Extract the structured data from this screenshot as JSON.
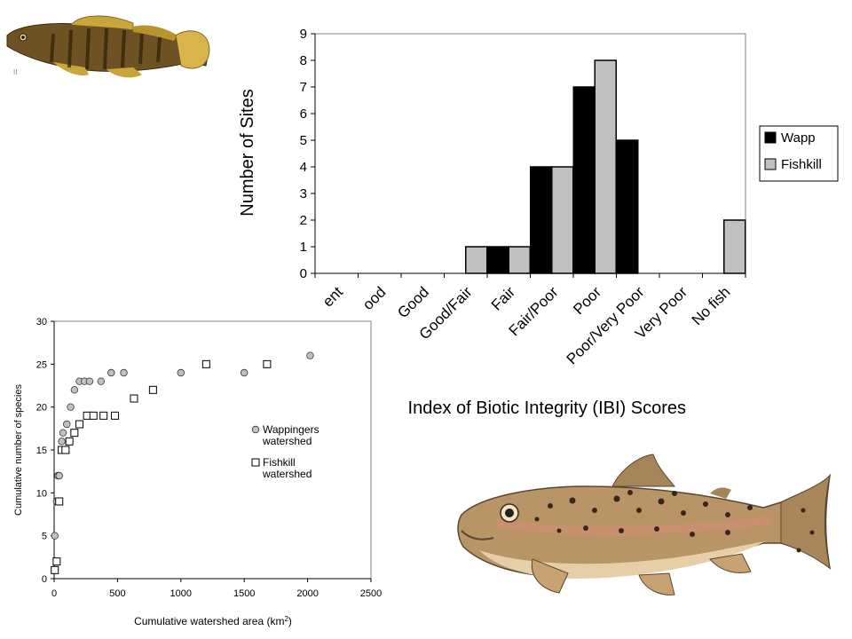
{
  "images": [
    {
      "icon": "darter-fish-illustration",
      "mark": "II"
    },
    {
      "icon": "brown-trout-illustration"
    }
  ],
  "colors": {
    "wapp": "#000000",
    "fishkill": "#c0c0c0",
    "plot_bg": "#ffffff",
    "scatter_marker": "#c0c0c0"
  },
  "chart_data": [
    {
      "type": "bar",
      "ylabel": "Number of Sites",
      "xlabel": "Index of Biotic Integrity (IBI) Scores",
      "ylim": [
        0,
        9
      ],
      "yticks": [
        "0",
        "1",
        "2",
        "3",
        "4",
        "5",
        "6",
        "7",
        "8",
        "9"
      ],
      "categories": [
        "Excellent",
        "Excellent/Good",
        "Good",
        "Good/Fair",
        "Fair",
        "Fair/Poor",
        "Poor",
        "Poor/Very Poor",
        "Very Poor",
        "No fish"
      ],
      "category_labels_visible": [
        "ent",
        "ood",
        "Good",
        "Good/Fair",
        "Fair",
        "Fair/Poor",
        "Poor",
        "Poor/Very Poor",
        "Very Poor",
        "No fish"
      ],
      "series": [
        {
          "name": "Wapp",
          "values": [
            0,
            0,
            0,
            0,
            1,
            4,
            7,
            5,
            0,
            0
          ]
        },
        {
          "name": "Fishkill",
          "values": [
            0,
            0,
            0,
            1,
            1,
            4,
            8,
            0,
            0,
            2
          ]
        }
      ],
      "legend": "right",
      "grid": false
    },
    {
      "type": "scatter",
      "xlabel": "Cumulative watershed area (km",
      "xlabel_sup": "2",
      "xlabel_close": ")",
      "ylabel": "Cumulative number of species",
      "xlim": [
        0,
        2500
      ],
      "ylim": [
        0,
        30
      ],
      "xticks": [
        "0",
        "500",
        "1000",
        "1500",
        "2000",
        "2500"
      ],
      "yticks": [
        "0",
        "5",
        "10",
        "15",
        "20",
        "25",
        "30"
      ],
      "series": [
        {
          "name": "Wappingers watershed",
          "name_lines": [
            "Wappingers",
            "watershed"
          ],
          "marker": "circle",
          "points": [
            [
              5,
              5
            ],
            [
              20,
              9
            ],
            [
              30,
              12
            ],
            [
              40,
              12
            ],
            [
              60,
              16
            ],
            [
              70,
              17
            ],
            [
              100,
              18
            ],
            [
              130,
              20
            ],
            [
              160,
              22
            ],
            [
              200,
              23
            ],
            [
              240,
              23
            ],
            [
              280,
              23
            ],
            [
              370,
              23
            ],
            [
              450,
              24
            ],
            [
              550,
              24
            ],
            [
              1000,
              24
            ],
            [
              1500,
              24
            ],
            [
              2020,
              26
            ]
          ]
        },
        {
          "name": "Fishkill watershed",
          "name_lines": [
            "Fishkill",
            "watershed"
          ],
          "marker": "square",
          "points": [
            [
              5,
              1
            ],
            [
              20,
              2
            ],
            [
              40,
              9
            ],
            [
              60,
              15
            ],
            [
              90,
              15
            ],
            [
              120,
              16
            ],
            [
              160,
              17
            ],
            [
              200,
              18
            ],
            [
              260,
              19
            ],
            [
              310,
              19
            ],
            [
              390,
              19
            ],
            [
              480,
              19
            ],
            [
              630,
              21
            ],
            [
              780,
              22
            ],
            [
              1200,
              25
            ],
            [
              1680,
              25
            ]
          ]
        }
      ],
      "legend": "right",
      "grid": false
    }
  ]
}
